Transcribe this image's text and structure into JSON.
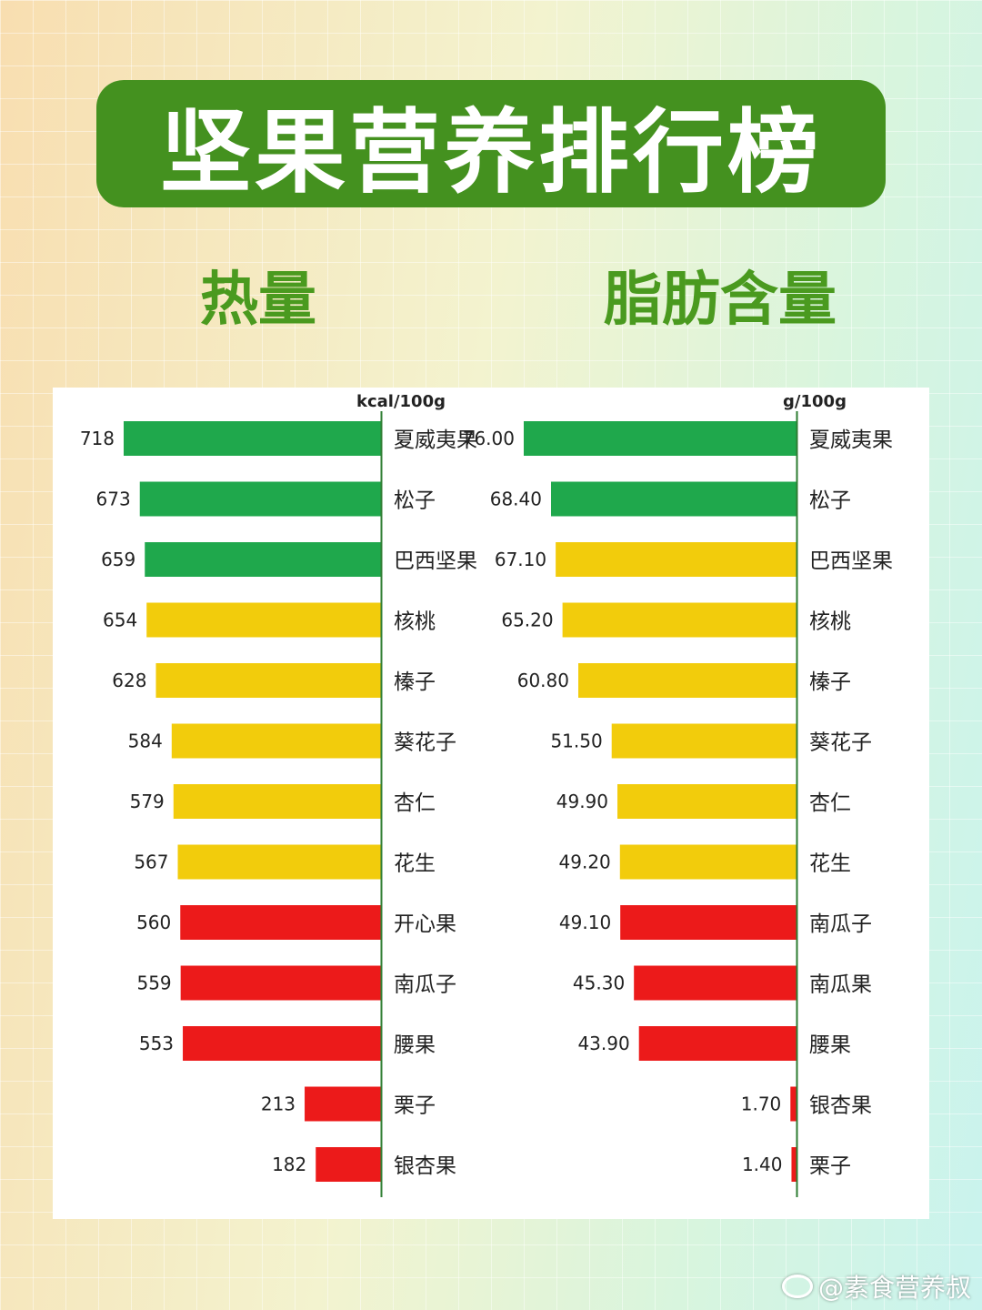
{
  "title": "坚果营养排行榜",
  "watermark": "@素食营养叔",
  "colors": {
    "green": "#1fa84c",
    "yellow": "#f2cc0c",
    "red": "#ec1a1a",
    "title_bg": "#44911f",
    "axis": "#2e7d32"
  },
  "chart_data": [
    {
      "type": "bar",
      "orientation": "horizontal",
      "subtitle": "热量",
      "unit": "kcal/100g",
      "categories": [
        "夏威夷果",
        "松子",
        "巴西坚果",
        "核桃",
        "榛子",
        "葵花子",
        "杏仁",
        "花生",
        "开心果",
        "南瓜子",
        "腰果",
        "栗子",
        "银杏果"
      ],
      "values": [
        718,
        673,
        659,
        654,
        628,
        584,
        579,
        567,
        560,
        559,
        553,
        213,
        182
      ],
      "value_labels": [
        "718",
        "673",
        "659",
        "654",
        "628",
        "584",
        "579",
        "567",
        "560",
        "559",
        "553",
        "213",
        "182"
      ],
      "bar_colors": [
        "green",
        "green",
        "green",
        "yellow",
        "yellow",
        "yellow",
        "yellow",
        "yellow",
        "red",
        "red",
        "red",
        "red",
        "red"
      ],
      "xlim": [
        0,
        900
      ]
    },
    {
      "type": "bar",
      "orientation": "horizontal",
      "subtitle": "脂肪含量",
      "unit": "g/100g",
      "categories": [
        "夏威夷果",
        "松子",
        "巴西坚果",
        "核桃",
        "榛子",
        "葵花子",
        "杏仁",
        "花生",
        "南瓜子",
        "南瓜果",
        "腰果",
        "银杏果",
        "栗子"
      ],
      "values": [
        76.0,
        68.4,
        67.1,
        65.2,
        60.8,
        51.5,
        49.9,
        49.2,
        49.1,
        45.3,
        43.9,
        1.7,
        1.4
      ],
      "value_labels": [
        "76.00",
        "68.40",
        "67.10",
        "65.20",
        "60.80",
        "51.50",
        "49.90",
        "49.20",
        "49.10",
        "45.30",
        "43.90",
        "1.70",
        "1.40"
      ],
      "bar_colors": [
        "green",
        "green",
        "yellow",
        "yellow",
        "yellow",
        "yellow",
        "yellow",
        "yellow",
        "red",
        "red",
        "red",
        "red",
        "red"
      ],
      "xlim": [
        0,
        76
      ]
    }
  ]
}
